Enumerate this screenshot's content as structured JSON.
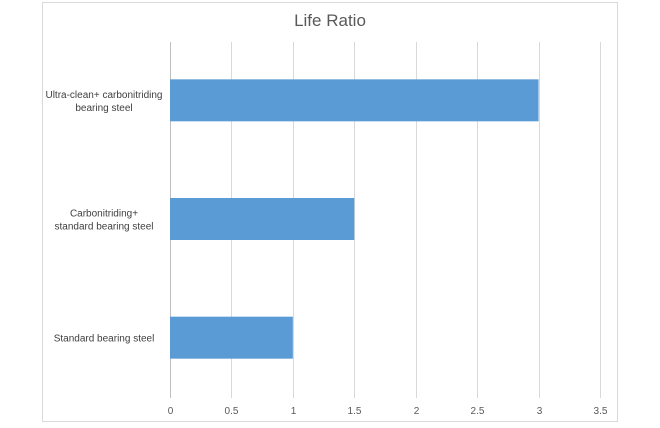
{
  "chart_data": {
    "type": "bar",
    "orientation": "horizontal",
    "title": "Life Ratio",
    "categories": [
      "Ultra-clean+ carbonitriding bearing steel",
      "Carbonitriding+ standard bearing steel",
      "Standard bearing steel"
    ],
    "category_lines": [
      [
        "Ultra-clean+ carbonitriding",
        "bearing steel"
      ],
      [
        "Carbonitriding+",
        "standard bearing steel"
      ],
      [
        "Standard bearing steel"
      ]
    ],
    "values": [
      3,
      1.5,
      1
    ],
    "xlim": [
      0,
      3.5
    ],
    "xticks": [
      "0",
      "0.5",
      "1",
      "1.5",
      "2",
      "2.5",
      "3",
      "3.5"
    ],
    "grid": true,
    "bar_color": "#5b9bd5",
    "legend": "none"
  }
}
